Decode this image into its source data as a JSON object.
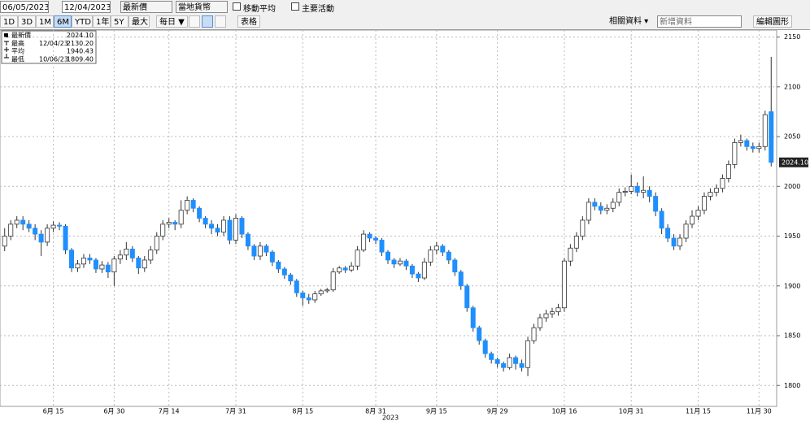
{
  "toolbar": {
    "start_date": "06/05/2023",
    "end_date": "12/04/2023",
    "price_field": "最新價",
    "currency": "當地貨幣",
    "moving_average": "移動平均",
    "key_events": "主要活動",
    "ranges": [
      "1D",
      "3D",
      "1M",
      "6M",
      "YTD",
      "1年",
      "5Y",
      "最大"
    ],
    "selected_range": 3,
    "frequency": "每日 ▼",
    "table": "表格",
    "related": "相關資料 ▾",
    "add_data": "新增資料",
    "edit_chart": "編輯圖形"
  },
  "chart_data": {
    "type": "candlestick",
    "up_color": "#ffffff",
    "down_color": "#1f8fff",
    "grid": true,
    "year_label": "2023",
    "stats": [
      {
        "label": "最新價",
        "date": null,
        "value": "2024.10"
      },
      {
        "label": "最高",
        "date": "12/04/23",
        "value": "2130.20"
      },
      {
        "label": "平均",
        "date": null,
        "value": "1940.43"
      },
      {
        "label": "最低",
        "date": "10/06/23",
        "value": "1809.40"
      }
    ],
    "ylim": [
      1779,
      2157
    ],
    "yticks": [
      1800,
      1850,
      1900,
      1950,
      2000,
      2050,
      2100,
      2150
    ],
    "categories": [
      null,
      null,
      null,
      null,
      null,
      null,
      null,
      null,
      "6月 15",
      null,
      null,
      null,
      null,
      null,
      null,
      null,
      null,
      null,
      "6月 30",
      null,
      null,
      null,
      null,
      null,
      null,
      null,
      null,
      "7月 14",
      null,
      null,
      null,
      null,
      null,
      null,
      null,
      null,
      null,
      null,
      "7月 31",
      null,
      null,
      null,
      null,
      null,
      null,
      null,
      null,
      null,
      null,
      "8月 15",
      null,
      null,
      null,
      null,
      null,
      null,
      null,
      null,
      null,
      null,
      null,
      "8月 31",
      null,
      null,
      null,
      null,
      null,
      null,
      null,
      null,
      null,
      "9月 15",
      null,
      null,
      null,
      null,
      null,
      null,
      null,
      null,
      null,
      "9月 29",
      null,
      null,
      null,
      null,
      null,
      null,
      null,
      null,
      null,
      null,
      "10月 16",
      null,
      null,
      null,
      null,
      null,
      null,
      null,
      null,
      null,
      null,
      "10月 31",
      null,
      null,
      null,
      null,
      null,
      null,
      null,
      null,
      null,
      null,
      "11月 15",
      null,
      null,
      null,
      null,
      null,
      null,
      null,
      null,
      null,
      "11月 30",
      null,
      null
    ],
    "open": [
      1940,
      1950,
      1962,
      1966,
      1962,
      1958,
      1952,
      1944,
      1958,
      1961,
      1960,
      1936,
      1918,
      1922,
      1928,
      1926,
      1917,
      1921,
      1914,
      1927,
      1931,
      1937,
      1928,
      1918,
      1926,
      1936,
      1950,
      1962,
      1964,
      1962,
      1976,
      1986,
      1978,
      1968,
      1962,
      1958,
      1954,
      1966,
      1946,
      1968,
      1952,
      1940,
      1930,
      1940,
      1934,
      1924,
      1917,
      1911,
      1905,
      1893,
      1888,
      1886,
      1892,
      1895,
      1896,
      1914,
      1918,
      1916,
      1920,
      1936,
      1952,
      1948,
      1946,
      1934,
      1926,
      1922,
      1925,
      1920,
      1912,
      1908,
      1924,
      1936,
      1940,
      1934,
      1926,
      1914,
      1900,
      1878,
      1858,
      1845,
      1832,
      1826,
      1822,
      1818,
      1828,
      1822,
      1818,
      1845,
      1858,
      1868,
      1872,
      1874,
      1878,
      1925,
      1938,
      1950,
      1966,
      1984,
      1980,
      1976,
      1978,
      1984,
      1994,
      1995,
      2000,
      1994,
      1996,
      1990,
      1975,
      1958,
      1948,
      1940,
      1948,
      1962,
      1970,
      1976,
      1990,
      1994,
      1998,
      2008,
      2022,
      2044,
      2046,
      2040,
      2038,
      2040,
      2075
    ],
    "high": [
      1958,
      1966,
      1970,
      1970,
      1966,
      1962,
      1956,
      1962,
      1965,
      1964,
      1962,
      1938,
      1926,
      1932,
      1932,
      1928,
      1925,
      1924,
      1930,
      1936,
      1944,
      1940,
      1930,
      1930,
      1940,
      1954,
      1966,
      1968,
      1966,
      1986,
      1990,
      1988,
      1980,
      1970,
      1966,
      1962,
      1970,
      1970,
      1972,
      1970,
      1954,
      1942,
      1944,
      1942,
      1936,
      1926,
      1919,
      1913,
      1907,
      1895,
      1892,
      1895,
      1897,
      1898,
      1918,
      1920,
      1920,
      1924,
      1940,
      1956,
      1954,
      1950,
      1948,
      1936,
      1928,
      1928,
      1927,
      1922,
      1914,
      1928,
      1940,
      1944,
      1942,
      1936,
      1928,
      1916,
      1902,
      1880,
      1860,
      1847,
      1834,
      1828,
      1824,
      1832,
      1830,
      1826,
      1849,
      1862,
      1872,
      1876,
      1878,
      1882,
      1928,
      1942,
      1954,
      1970,
      1988,
      1988,
      1984,
      1982,
      1988,
      1998,
      1999,
      2012,
      2004,
      2010,
      2000,
      1994,
      1978,
      1962,
      1952,
      1952,
      1966,
      1976,
      1980,
      1994,
      1998,
      2002,
      2012,
      2026,
      2048,
      2052,
      2048,
      2044,
      2044,
      2076,
      2130.2
    ],
    "low": [
      1935,
      1946,
      1958,
      1956,
      1954,
      1946,
      1930,
      1940,
      1954,
      1956,
      1932,
      1914,
      1914,
      1918,
      1922,
      1913,
      1913,
      1908,
      1900,
      1922,
      1926,
      1924,
      1912,
      1914,
      1922,
      1932,
      1946,
      1958,
      1956,
      1958,
      1972,
      1974,
      1964,
      1958,
      1952,
      1950,
      1950,
      1942,
      1942,
      1948,
      1936,
      1926,
      1926,
      1930,
      1920,
      1913,
      1907,
      1901,
      1889,
      1880,
      1882,
      1883,
      1890,
      1893,
      1894,
      1912,
      1913,
      1914,
      1916,
      1934,
      1944,
      1942,
      1930,
      1922,
      1918,
      1920,
      1916,
      1908,
      1904,
      1906,
      1920,
      1932,
      1930,
      1922,
      1910,
      1896,
      1874,
      1854,
      1841,
      1828,
      1822,
      1818,
      1814,
      1816,
      1816,
      1814,
      1809.4,
      1842,
      1855,
      1864,
      1868,
      1870,
      1874,
      1920,
      1934,
      1946,
      1962,
      1976,
      1972,
      1972,
      1974,
      1980,
      1990,
      1992,
      1990,
      1988,
      1984,
      1970,
      1952,
      1944,
      1936,
      1936,
      1944,
      1958,
      1966,
      1972,
      1986,
      1990,
      1994,
      2004,
      2018,
      2040,
      2036,
      2034,
      2034,
      2036,
      2020
    ],
    "close": [
      1950,
      1962,
      1966,
      1962,
      1958,
      1952,
      1944,
      1958,
      1961,
      1960,
      1936,
      1918,
      1922,
      1928,
      1926,
      1917,
      1921,
      1914,
      1927,
      1931,
      1937,
      1928,
      1918,
      1926,
      1936,
      1950,
      1962,
      1964,
      1962,
      1976,
      1986,
      1978,
      1968,
      1962,
      1958,
      1954,
      1966,
      1946,
      1968,
      1952,
      1940,
      1930,
      1940,
      1934,
      1924,
      1917,
      1911,
      1905,
      1893,
      1888,
      1886,
      1892,
      1895,
      1896,
      1914,
      1918,
      1916,
      1920,
      1936,
      1952,
      1948,
      1946,
      1934,
      1926,
      1922,
      1925,
      1920,
      1912,
      1908,
      1924,
      1936,
      1940,
      1934,
      1926,
      1914,
      1900,
      1878,
      1858,
      1845,
      1832,
      1826,
      1822,
      1818,
      1828,
      1822,
      1818,
      1845,
      1858,
      1868,
      1872,
      1874,
      1878,
      1925,
      1938,
      1950,
      1966,
      1984,
      1980,
      1976,
      1978,
      1984,
      1994,
      1995,
      2000,
      1994,
      1996,
      1990,
      1975,
      1958,
      1948,
      1940,
      1948,
      1962,
      1970,
      1976,
      1990,
      1994,
      1998,
      2008,
      2022,
      2044,
      2046,
      2040,
      2038,
      2040,
      2072,
      2024.1
    ]
  }
}
